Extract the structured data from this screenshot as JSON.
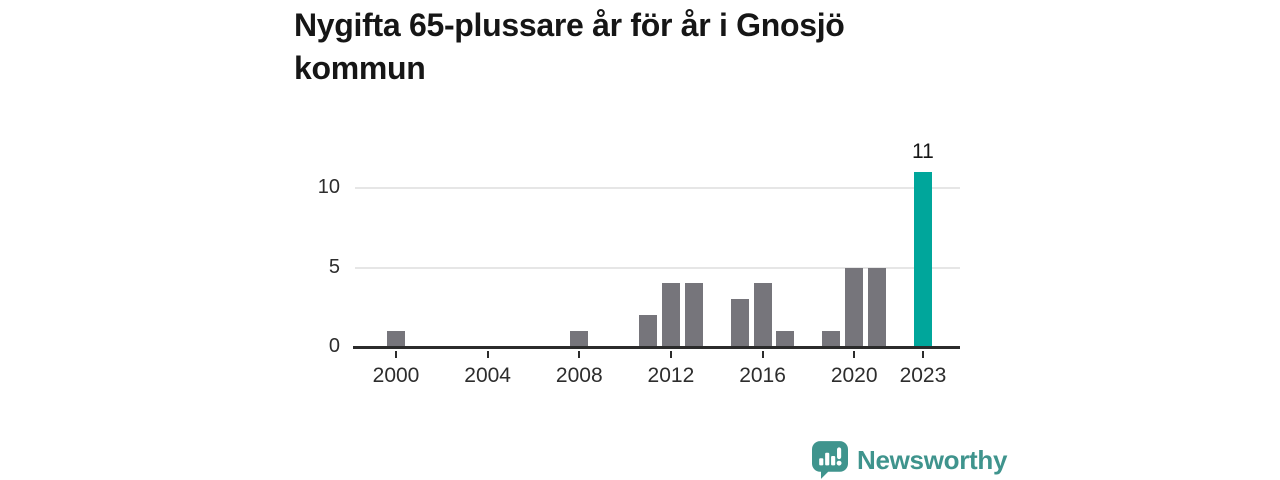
{
  "title": "Nygifta 65-plussare år för år i Gnosjö kommun",
  "annotation": {
    "label": "11"
  },
  "branding": {
    "name": "Newsworthy",
    "icon": "newsworthy-speech-bubble-chart-icon",
    "color": "#3f948d"
  },
  "colors": {
    "bar": "#76757b",
    "highlight": "#00a69b",
    "grid": "#e6e6e6",
    "axis": "#2b2b2b",
    "title_text": "#161616",
    "tick_text": "#2d2d2d",
    "brand": "#3f948d",
    "background": "#ffffff"
  },
  "chart_data": {
    "type": "bar",
    "title": "Nygifta 65-plussare år för år i Gnosjö kommun",
    "xlabel": "",
    "ylabel": "",
    "x": [
      2000,
      2001,
      2002,
      2003,
      2004,
      2005,
      2006,
      2007,
      2008,
      2009,
      2010,
      2011,
      2012,
      2013,
      2014,
      2015,
      2016,
      2017,
      2018,
      2019,
      2020,
      2021,
      2022,
      2023
    ],
    "values": [
      1,
      0,
      0,
      0,
      0,
      0,
      0,
      0,
      1,
      0,
      0,
      2,
      4,
      4,
      0,
      3,
      4,
      1,
      0,
      1,
      5,
      5,
      0,
      11
    ],
    "x_tick_labels": [
      "2000",
      "2004",
      "2008",
      "2012",
      "2016",
      "2020",
      "2023"
    ],
    "x_tick_years": [
      2000,
      2004,
      2008,
      2012,
      2016,
      2020,
      2023
    ],
    "y_ticks": [
      0,
      5,
      10
    ],
    "ylim": [
      0,
      12.5
    ],
    "grid": "horizontal-only",
    "legend": "none",
    "highlight": {
      "year": 2023,
      "value": 11,
      "label": "11",
      "color": "#00a69b"
    }
  }
}
